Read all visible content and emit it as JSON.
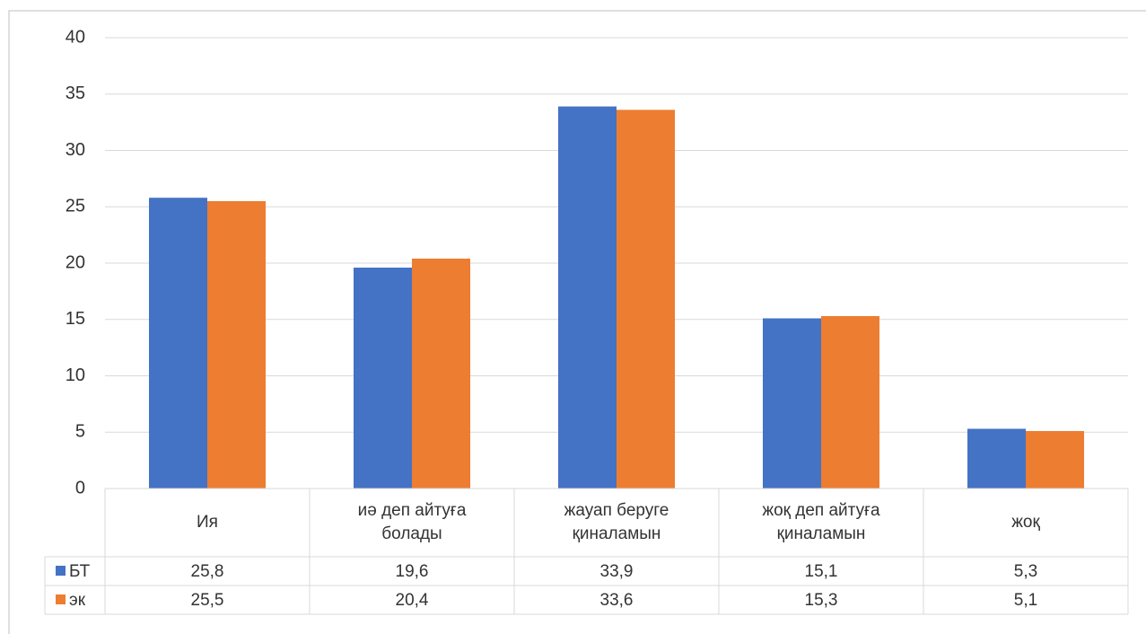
{
  "chart_data": {
    "type": "bar",
    "categories": [
      "Ия",
      "иә деп айтуға болады",
      "жауап беруге қиналамын",
      "жоқ деп айтуға қиналамын",
      "жоқ"
    ],
    "series": [
      {
        "name": "БТ",
        "color": "#4472c4",
        "values": [
          25.8,
          19.6,
          33.9,
          15.1,
          5.3
        ],
        "value_labels": [
          "25,8",
          "19,6",
          "33,9",
          "15,1",
          "5,3"
        ]
      },
      {
        "name": "эк",
        "color": "#ed7d31",
        "values": [
          25.5,
          20.4,
          33.6,
          15.3,
          5.1
        ],
        "value_labels": [
          "25,5",
          "20,4",
          "33,6",
          "15,3",
          "5,1"
        ]
      }
    ],
    "ylim": [
      0,
      40
    ],
    "yticks": [
      0,
      5,
      10,
      15,
      20,
      25,
      30,
      35,
      40
    ],
    "grid": true
  }
}
